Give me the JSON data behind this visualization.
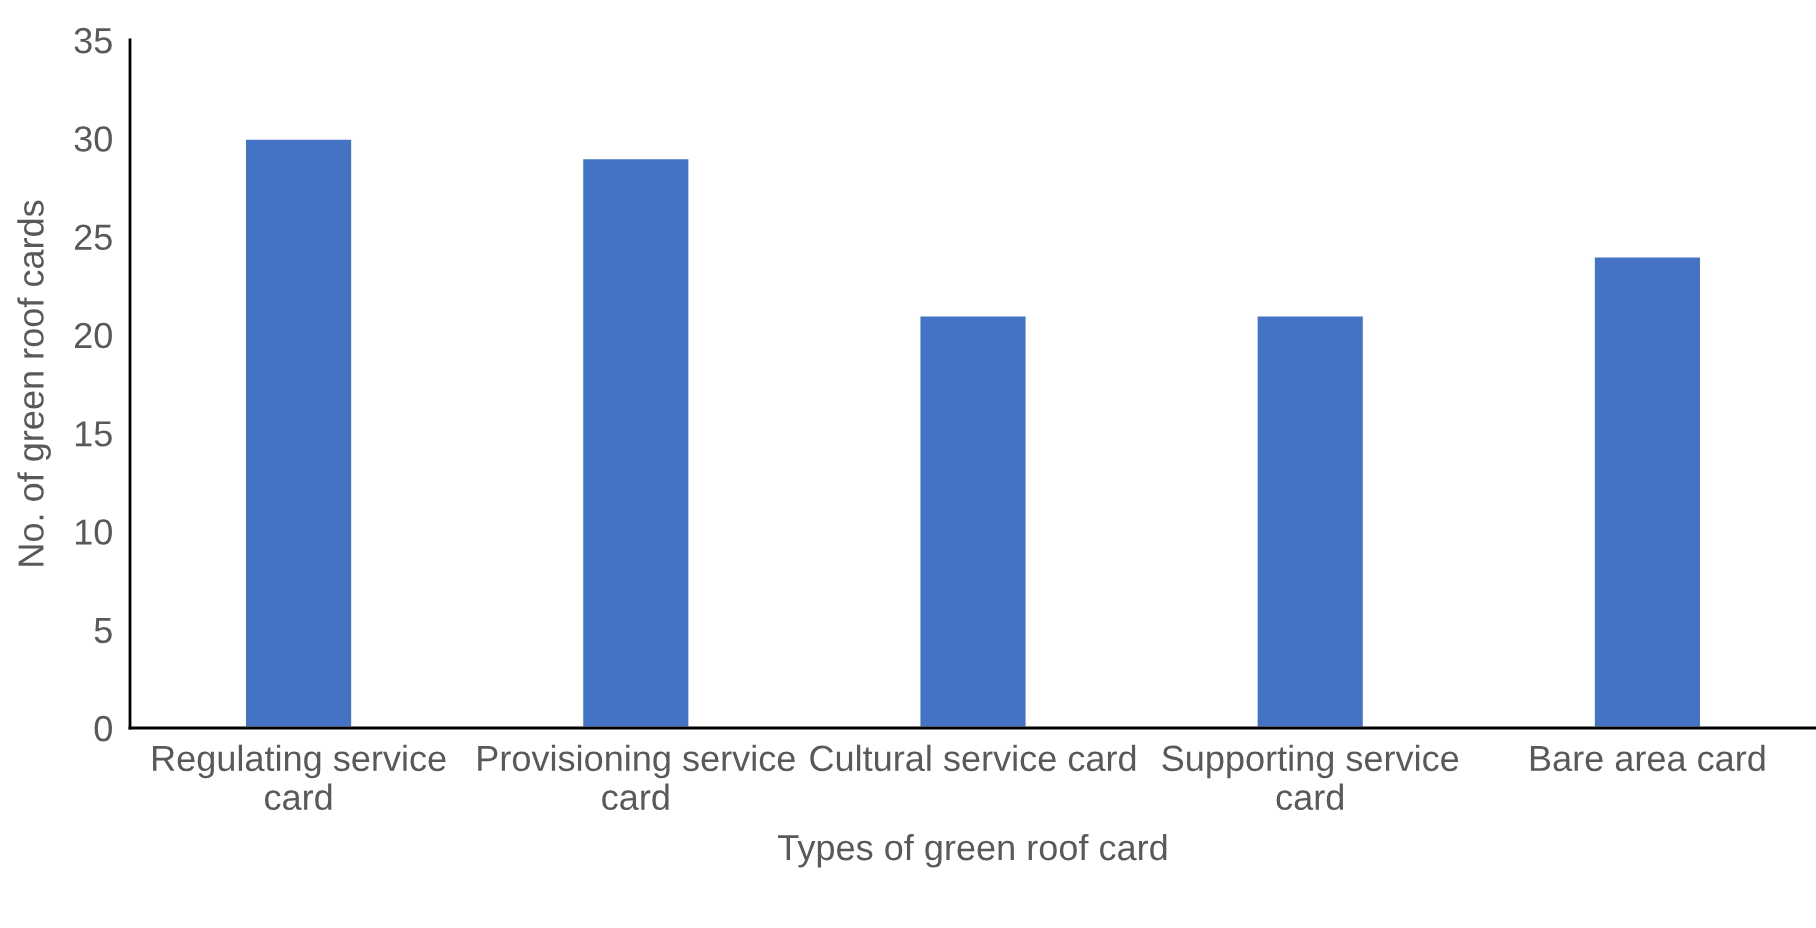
{
  "chart_data": {
    "type": "bar",
    "xlabel": "Types of green roof card",
    "ylabel": "No. of green roof cards",
    "categories": [
      "Regulating service card",
      "Provisioning service card",
      "Cultural service card",
      "Supporting service card",
      "Bare area card"
    ],
    "values": [
      30,
      29,
      21,
      21,
      24
    ],
    "color": "#4472c4",
    "ylim": [
      0,
      35
    ],
    "yticks": [
      0,
      5,
      10,
      15,
      20,
      25,
      30,
      35
    ],
    "grid": false,
    "legend": false
  }
}
